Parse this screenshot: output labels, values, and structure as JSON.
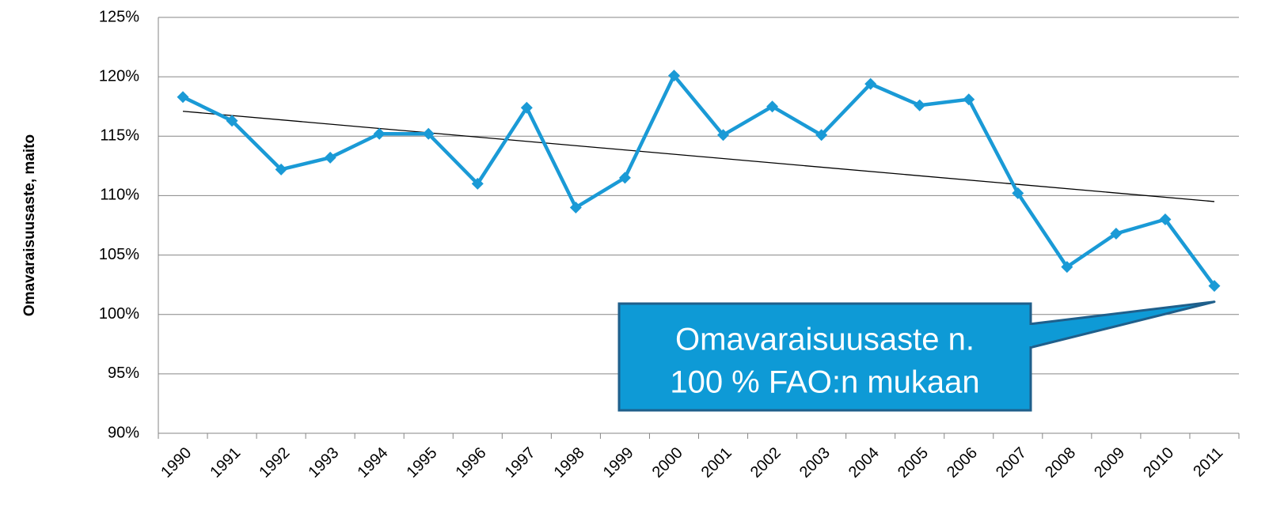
{
  "chart_data": {
    "type": "line",
    "y_label": "Omavaraisuusaste, maito",
    "categories": [
      "1990",
      "1991",
      "1992",
      "1993",
      "1994",
      "1995",
      "1996",
      "1997",
      "1998",
      "1999",
      "2000",
      "2001",
      "2002",
      "2003",
      "2004",
      "2005",
      "2006",
      "2007",
      "2008",
      "2009",
      "2010",
      "2011"
    ],
    "series": [
      {
        "color": "#1a9ad6",
        "values": [
          118.3,
          116.3,
          112.2,
          113.2,
          115.2,
          115.2,
          111.0,
          117.4,
          109.0,
          111.5,
          120.1,
          115.1,
          117.5,
          115.1,
          119.4,
          117.6,
          118.1,
          110.2,
          104.0,
          106.8,
          108.0,
          102.4
        ]
      }
    ],
    "trendline": {
      "color": "#000000",
      "values": [
        117.1,
        109.5
      ]
    },
    "ylim": [
      90,
      125
    ],
    "yticks": [
      {
        "value": 90,
        "label": "90%"
      },
      {
        "value": 95,
        "label": "95%"
      },
      {
        "value": 100,
        "label": "100%"
      },
      {
        "value": 105,
        "label": "105%"
      },
      {
        "value": 110,
        "label": "110%"
      },
      {
        "value": 115,
        "label": "115%"
      },
      {
        "value": 120,
        "label": "120%"
      },
      {
        "value": 125,
        "label": "125%"
      }
    ],
    "grid": true,
    "annotation": {
      "lines": [
        "Omavaraisuusaste n.",
        "100 % FAO:n mukaan"
      ],
      "fill": "#0e9ad6",
      "border": "#1f5f8b"
    }
  }
}
